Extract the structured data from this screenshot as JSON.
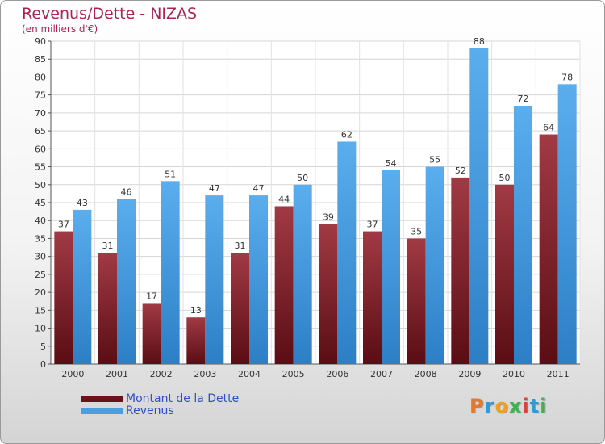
{
  "title": "Revenus/Dette - NIZAS",
  "subtitle": "(en milliers d'€)",
  "logo": "Proxiti",
  "colors": {
    "dette": "#7a1e28",
    "revenus": "#4a9fe2",
    "title": "#b0224e",
    "legend_text": "#2d4fc7"
  },
  "chart_data": {
    "type": "bar",
    "title": "Revenus/Dette - NIZAS",
    "subtitle": "(en milliers d'€)",
    "xlabel": "",
    "ylabel": "",
    "ylim": [
      0,
      90
    ],
    "ytick_step": 5,
    "grid": true,
    "legend_position": "bottom-left",
    "categories": [
      "2000",
      "2001",
      "2002",
      "2003",
      "2004",
      "2005",
      "2006",
      "2007",
      "2008",
      "2009",
      "2010",
      "2011"
    ],
    "series": [
      {
        "name": "Montant de la Dette",
        "values": [
          37,
          31,
          17,
          13,
          31,
          44,
          39,
          37,
          35,
          52,
          50,
          64
        ]
      },
      {
        "name": "Revenus",
        "values": [
          43,
          46,
          51,
          47,
          47,
          50,
          62,
          54,
          55,
          88,
          72,
          78
        ]
      }
    ]
  }
}
